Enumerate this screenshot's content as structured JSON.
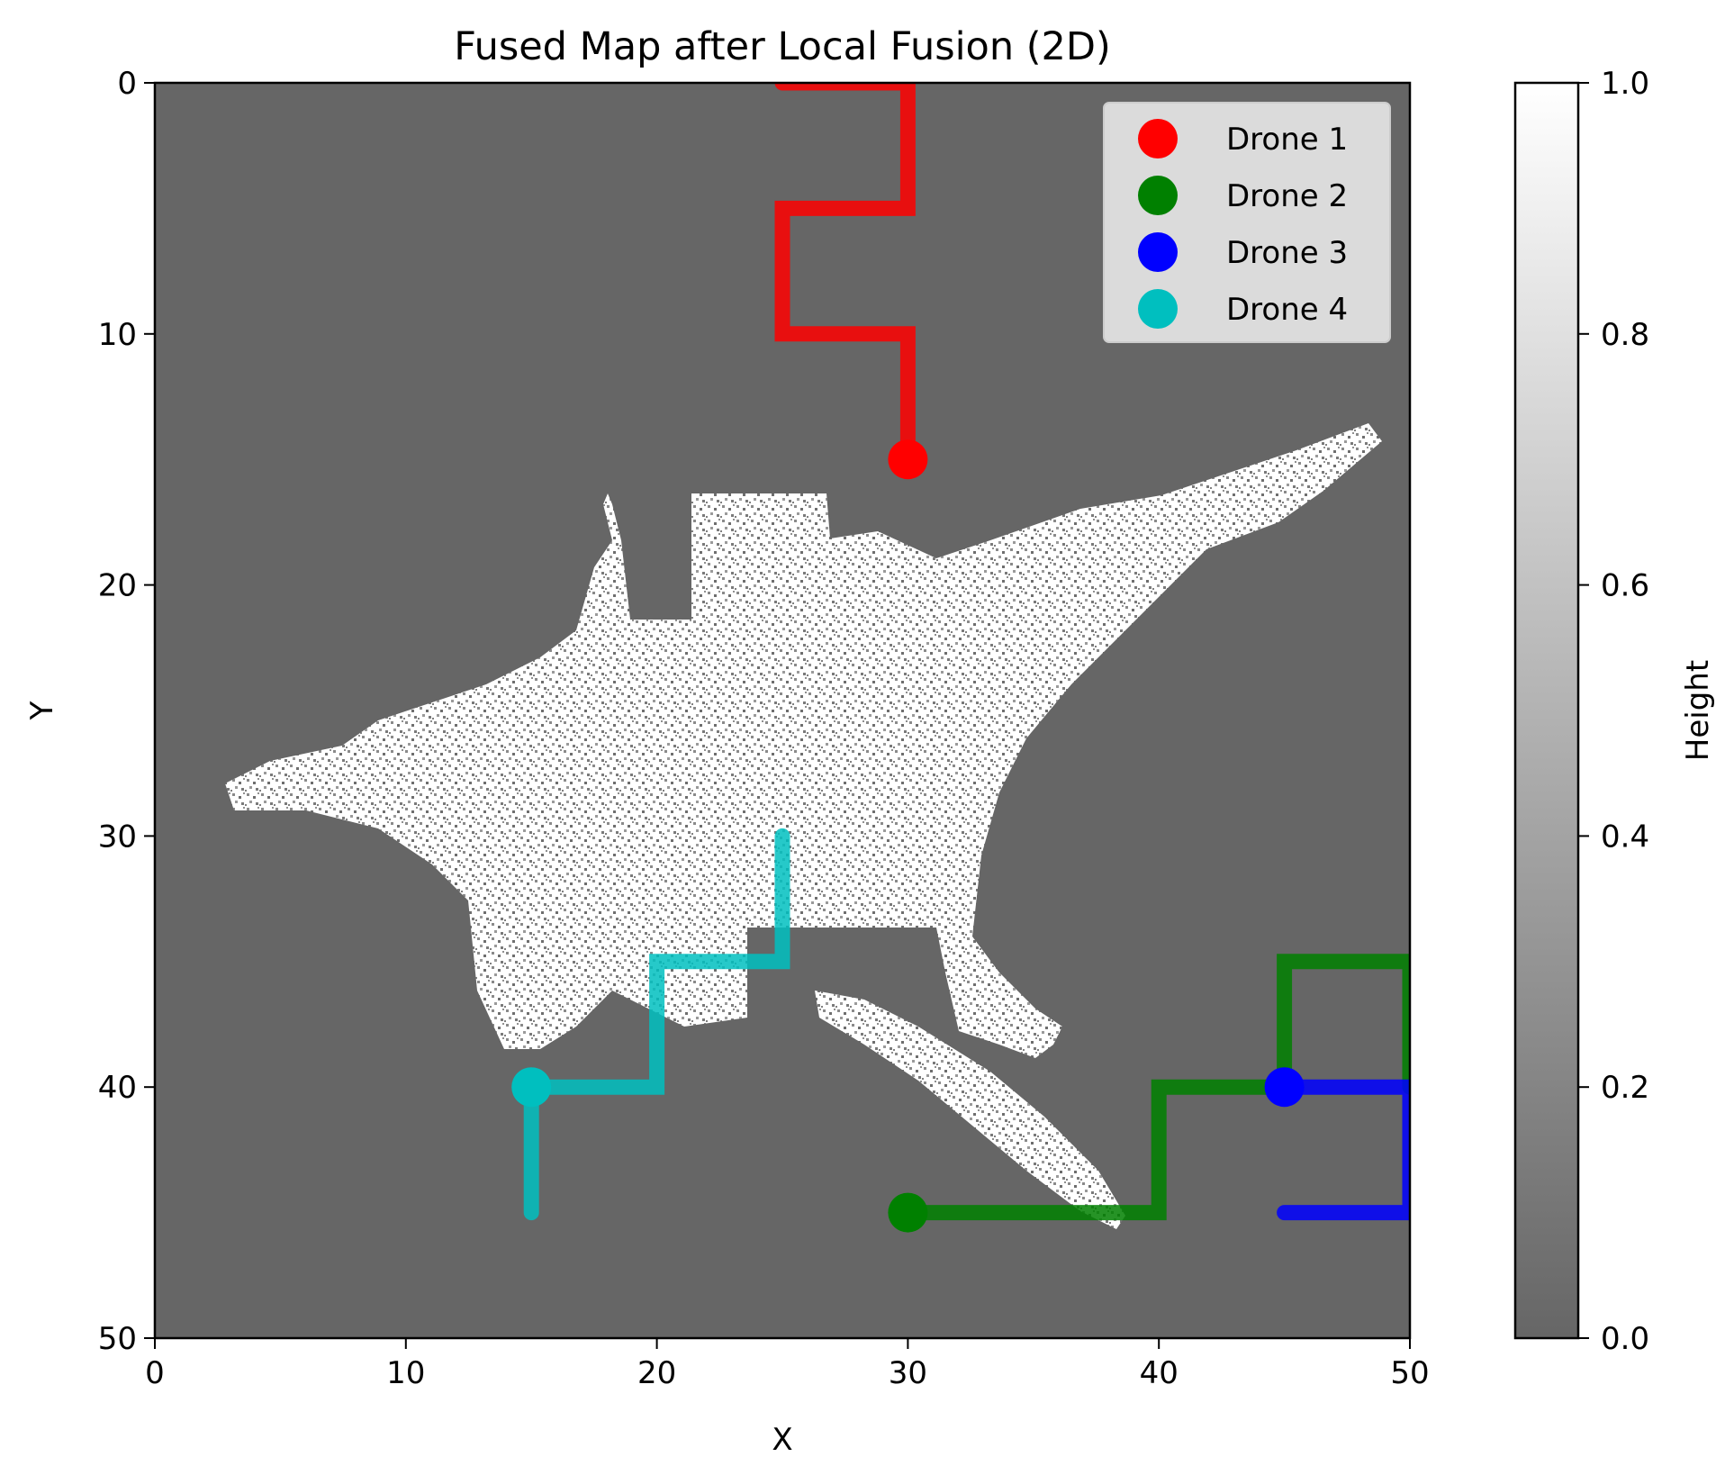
{
  "chart_data": {
    "type": "heatmap",
    "title": "Fused Map after Local Fusion (2D)",
    "xlabel": "X",
    "ylabel": "Y",
    "xlim": [
      0,
      50
    ],
    "ylim": [
      50,
      0
    ],
    "y_axis_inverted": true,
    "grid": false,
    "x_ticks": [
      "0",
      "10",
      "20",
      "30",
      "40",
      "50"
    ],
    "y_ticks": [
      "0",
      "10",
      "20",
      "30",
      "40",
      "50"
    ],
    "heatmap": {
      "colormap": "gray",
      "background_value": 0.0,
      "feature_value_range": [
        0.0,
        1.0
      ],
      "description_colors": {
        "background": "#666666",
        "feature": "#ffffff"
      }
    },
    "colorbar": {
      "label": "Height",
      "range": [
        0.0,
        1.0
      ],
      "ticks": [
        "0.0",
        "0.2",
        "0.4",
        "0.6",
        "0.8",
        "1.0"
      ]
    },
    "legend": {
      "placement": "top-right",
      "entries": [
        {
          "label": "Drone 1",
          "color": "#ff0000"
        },
        {
          "label": "Drone 2",
          "color": "#008000"
        },
        {
          "label": "Drone 3",
          "color": "#0000ff"
        },
        {
          "label": "Drone 4",
          "color": "#00bfbf"
        }
      ]
    },
    "series": [
      {
        "name": "Drone 1",
        "color": "#ff0000",
        "path": [
          [
            25,
            0
          ],
          [
            30,
            0
          ],
          [
            30,
            5
          ],
          [
            25,
            5
          ],
          [
            25,
            10
          ],
          [
            30,
            10
          ],
          [
            30,
            15
          ]
        ],
        "position": [
          30,
          15
        ]
      },
      {
        "name": "Drone 2",
        "color": "#008000",
        "path": [
          [
            30,
            45
          ],
          [
            40,
            45
          ],
          [
            40,
            40
          ],
          [
            45,
            40
          ],
          [
            45,
            35
          ],
          [
            50,
            35
          ],
          [
            50,
            40
          ]
        ],
        "position": [
          30,
          45
        ]
      },
      {
        "name": "Drone 3",
        "color": "#0000ff",
        "path": [
          [
            45,
            45
          ],
          [
            50,
            45
          ],
          [
            50,
            40
          ],
          [
            45,
            40
          ]
        ],
        "position": [
          45,
          40
        ]
      },
      {
        "name": "Drone 4",
        "color": "#00bfbf",
        "path": [
          [
            15,
            45
          ],
          [
            15,
            40
          ],
          [
            20,
            40
          ],
          [
            20,
            35
          ],
          [
            25,
            35
          ],
          [
            25,
            30
          ]
        ],
        "position": [
          15,
          40
        ]
      }
    ]
  }
}
